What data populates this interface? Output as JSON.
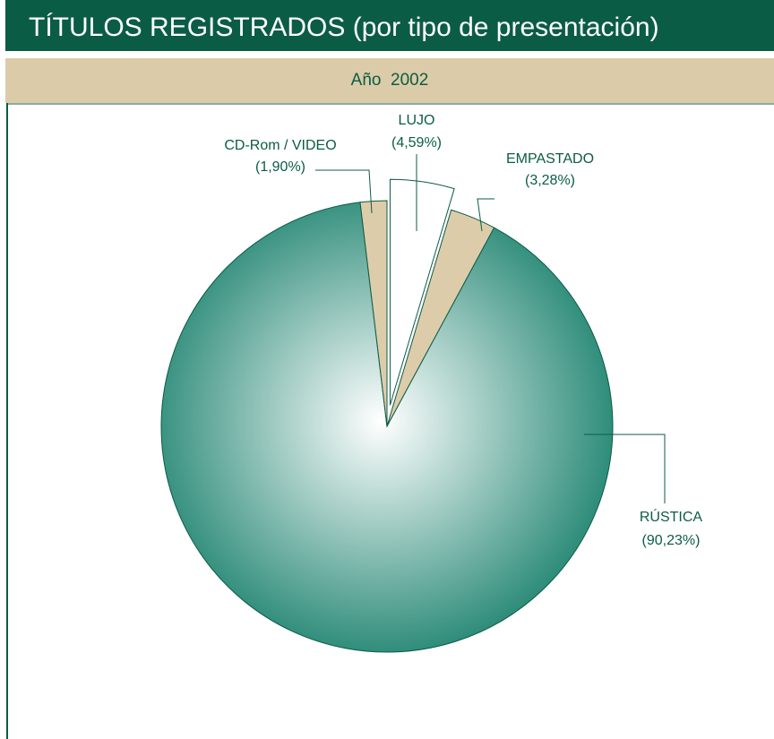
{
  "chart_data": {
    "type": "pie",
    "title": "TÍTULOS REGISTRADOS (por tipo de presentación)",
    "subtitle": "Año  2002",
    "categories": [
      "LUJO",
      "EMPASTADO",
      "RÚSTICA",
      "CD-Rom / VIDEO"
    ],
    "values": [
      4.59,
      3.28,
      90.23,
      1.9
    ],
    "value_labels": [
      "(4,59%)",
      "(3,28%)",
      "(90,23%)",
      "(1,90%)"
    ],
    "colors": [
      "#ffffff",
      "#ddccaa",
      "#0f7b66",
      "#ddccaa"
    ],
    "exploded": [
      true,
      false,
      false,
      false
    ]
  }
}
